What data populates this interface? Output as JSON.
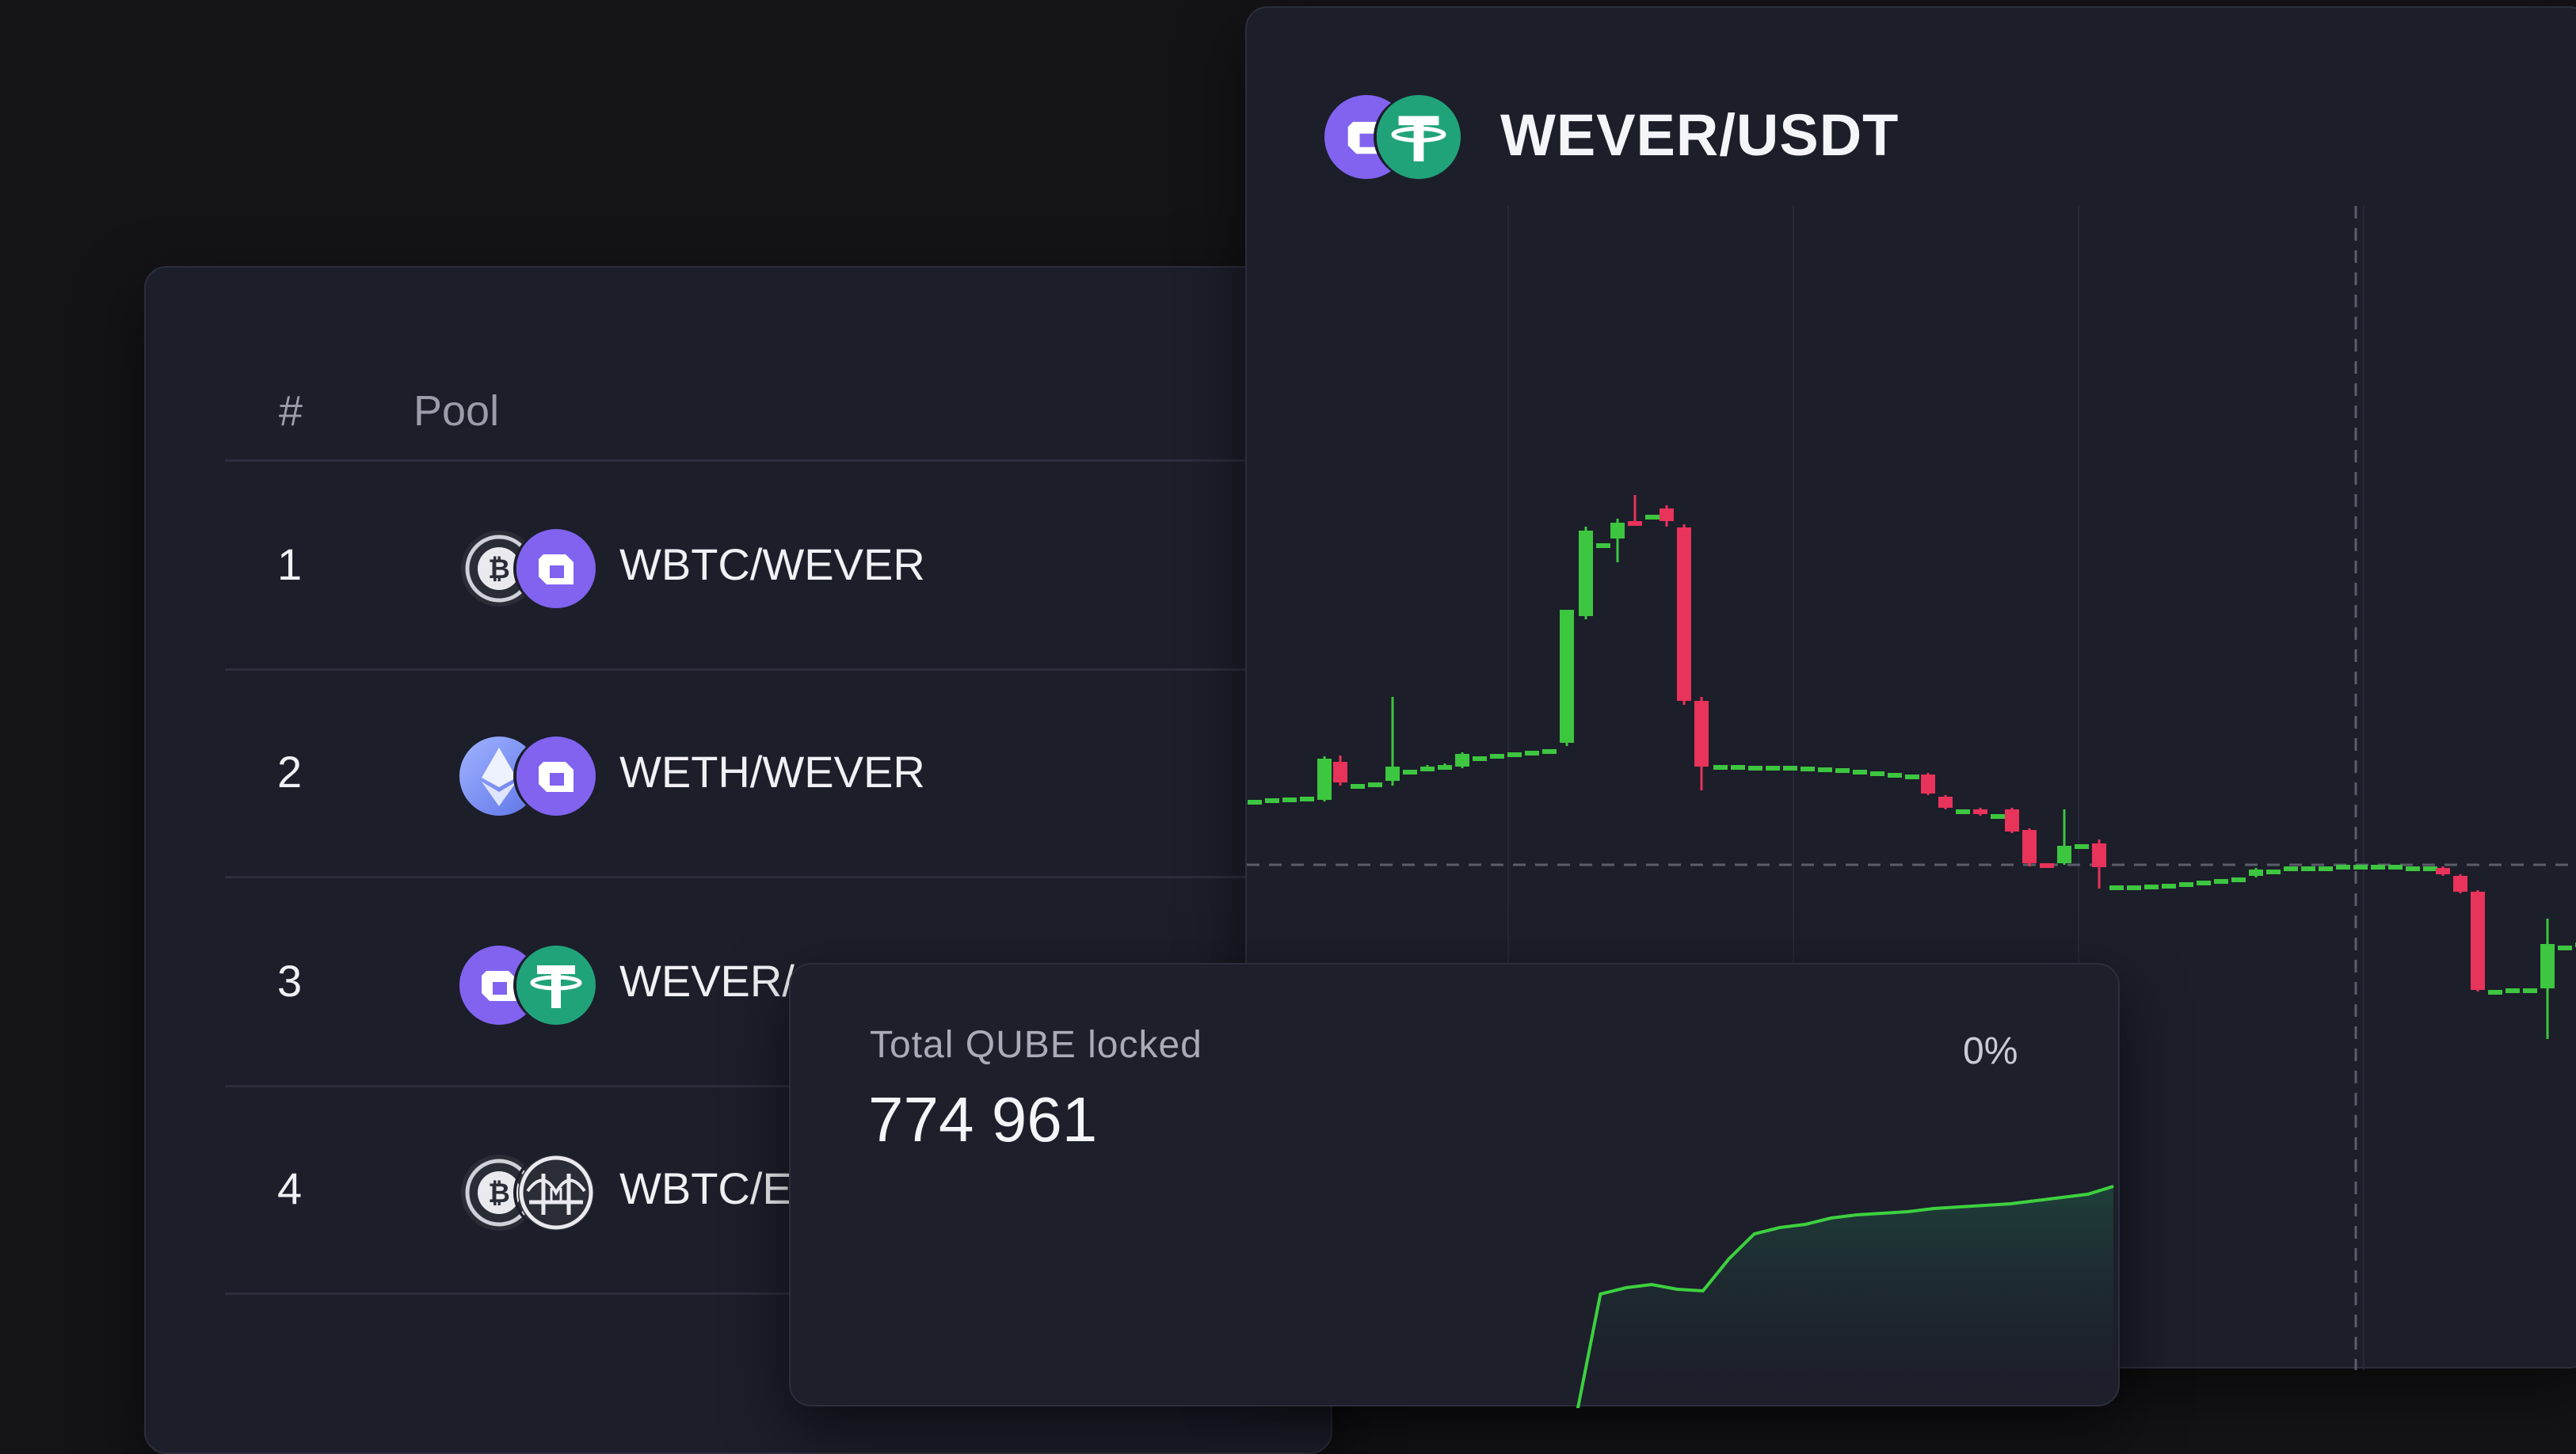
{
  "pools_table": {
    "columns": [
      "#",
      "Pool"
    ],
    "rows": [
      {
        "rank": "1",
        "pair": "WBTC/WEVER",
        "icons": [
          "wbtc-icon",
          "wever-icon"
        ]
      },
      {
        "rank": "2",
        "pair": "WETH/WEVER",
        "icons": [
          "weth-icon",
          "wever-icon"
        ]
      },
      {
        "rank": "3",
        "pair": "WEVER/",
        "icons": [
          "wever-icon",
          "usdt-icon"
        ]
      },
      {
        "rank": "4",
        "pair": "WBTC/E",
        "icons": [
          "wbtc-icon",
          "bridge-icon"
        ]
      }
    ]
  },
  "price_chart": {
    "pair": "WEVER/USDT",
    "icons": [
      "wever-icon",
      "usdt-icon"
    ],
    "colors": {
      "up": "#3dc63f",
      "down": "#e8335a",
      "background": "#1c1e2a"
    }
  },
  "tvl": {
    "label": "Total QUBE locked",
    "value": "774 961",
    "change": "0%",
    "line_color": "#3dd13f"
  },
  "chart_data": {
    "type": "line",
    "series": [
      {
        "values": [
          0,
          82,
          86,
          88,
          85,
          84,
          104,
          120,
          124,
          126,
          130,
          132,
          133,
          134,
          136,
          137,
          138,
          139,
          141,
          143,
          145,
          150
        ]
      }
    ]
  }
}
